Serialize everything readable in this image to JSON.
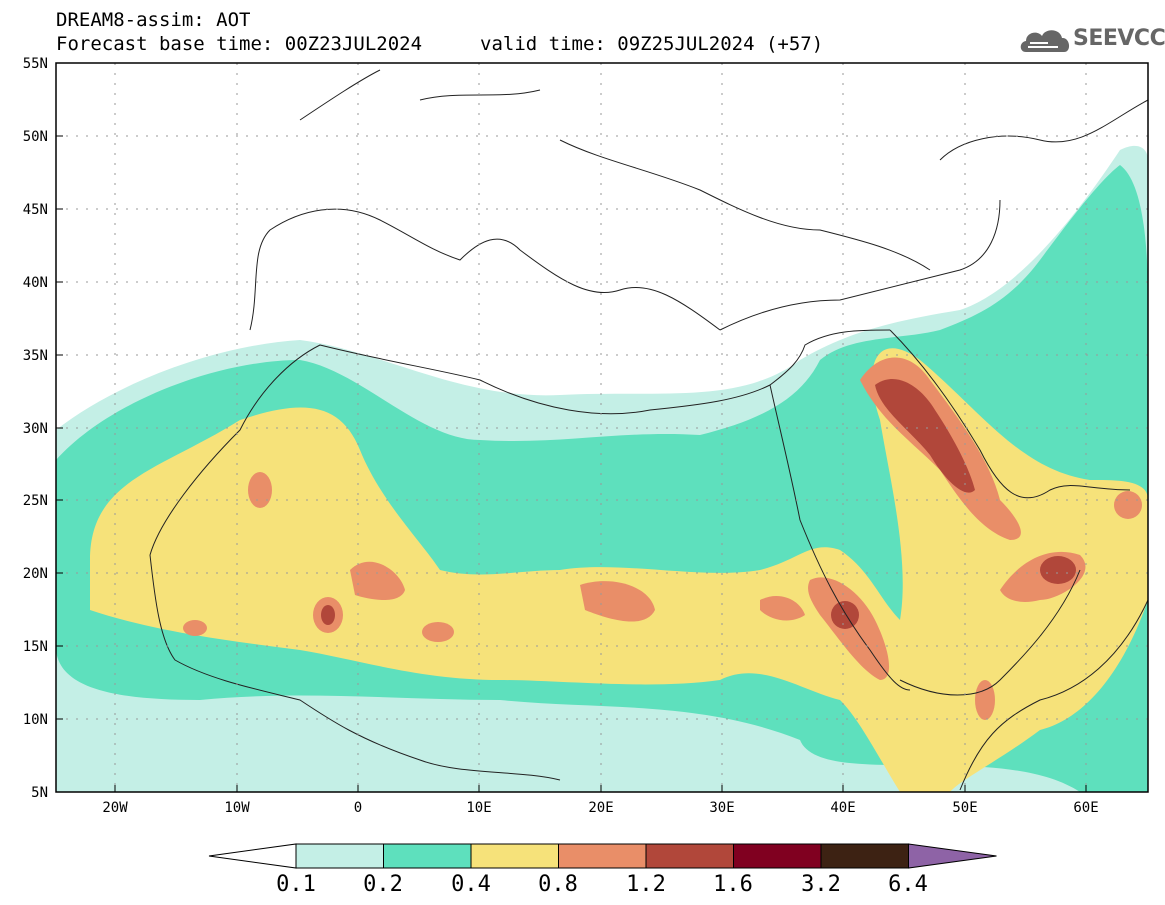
{
  "header": {
    "line1": "DREAM8-assim: AOT",
    "line2": "Forecast base time: 00Z23JUL2024",
    "valid": "valid time: 09Z25JUL2024 (+57)"
  },
  "logo": {
    "text": "SEEVCCC",
    "icon": "cloud-icon"
  },
  "map": {
    "lat_labels": [
      "55N",
      "50N",
      "45N",
      "40N",
      "35N",
      "30N",
      "25N",
      "20N",
      "15N",
      "10N",
      "5N"
    ],
    "lon_labels": [
      "20W",
      "10W",
      "0",
      "10E",
      "20E",
      "30E",
      "40E",
      "50E",
      "60E"
    ]
  },
  "colorbar": {
    "labels": [
      "0.1",
      "0.2",
      "0.4",
      "0.8",
      "1.2",
      "1.6",
      "3.2",
      "6.4"
    ],
    "colors": [
      "#ffffff",
      "#c4efe6",
      "#5ee0bd",
      "#f6e27a",
      "#e98e68",
      "#b1473a",
      "#800020",
      "#3d2213",
      "#8e63a6"
    ]
  }
}
